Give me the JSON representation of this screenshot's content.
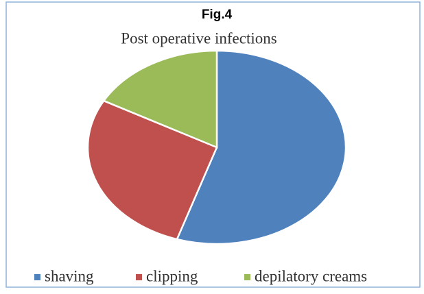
{
  "chart_data": {
    "type": "pie",
    "title": "Fig.4",
    "subtitle": "Post operative infections",
    "categories": [
      "shaving",
      "clipping",
      "depilatory creams"
    ],
    "values": [
      55,
      28,
      17
    ],
    "colors": [
      "#4f81bd",
      "#c0504d",
      "#9bbb59"
    ],
    "legend": "bottom"
  }
}
